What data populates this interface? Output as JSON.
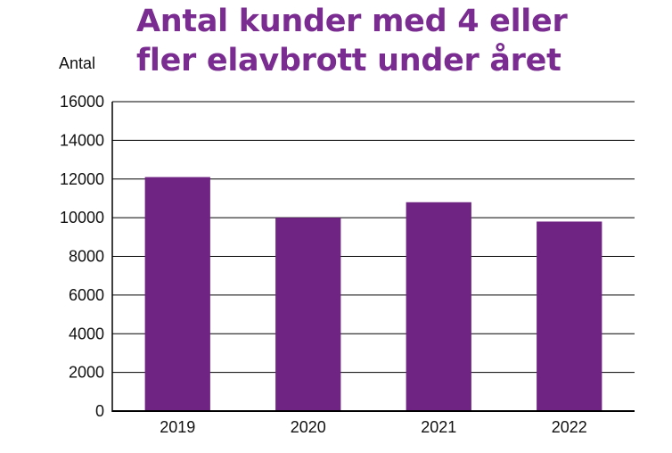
{
  "chart_data": {
    "type": "bar",
    "title_line1": "Antal kunder med 4 eller",
    "title_line2": "fler elavbrott under året",
    "ylabel": "Antal",
    "xlabel": "",
    "categories": [
      "2019",
      "2020",
      "2021",
      "2022"
    ],
    "values": [
      12100,
      10000,
      10800,
      9800
    ],
    "ylim": [
      0,
      16000
    ],
    "yticks": [
      0,
      2000,
      4000,
      6000,
      8000,
      10000,
      12000,
      14000,
      16000
    ],
    "grid": true,
    "legend": "none",
    "colors": {
      "bar": "#6f2382",
      "title": "#7a2c91",
      "grid": "#000000"
    }
  }
}
